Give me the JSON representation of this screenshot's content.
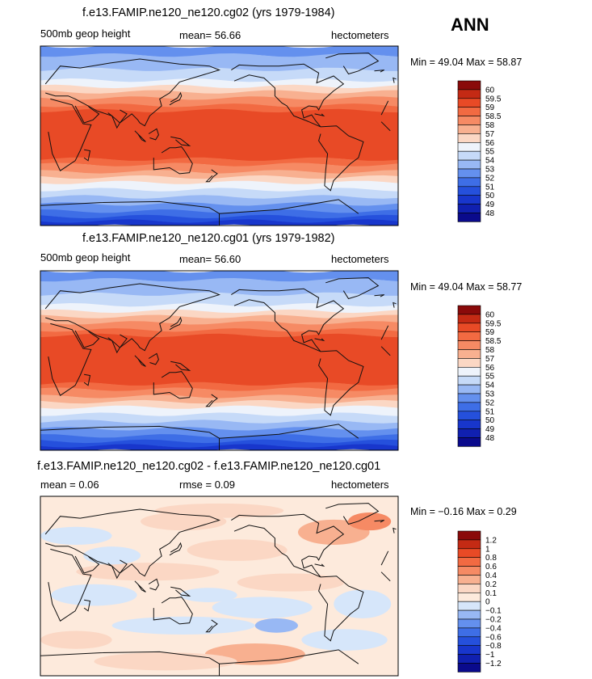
{
  "season": "ANN",
  "panels": [
    {
      "title": "f.e13.FAMIP.ne120_ne120.cg02 (yrs 1979-1984)",
      "variable": "500mb geop height",
      "stat_text": "mean=  56.66",
      "units": "hectometers",
      "minmax": "Min =  49.04 Max =  58.87",
      "legend_labels": [
        "60",
        "59.5",
        "59",
        "58.5",
        "58",
        "57",
        "56",
        "55",
        "54",
        "53",
        "52",
        "51",
        "50",
        "49",
        "48"
      ]
    },
    {
      "title": "f.e13.FAMIP.ne120_ne120.cg01 (yrs 1979-1982)",
      "variable": "500mb geop height",
      "stat_text": "mean=  56.60",
      "units": "hectometers",
      "minmax": "Min =  49.04 Max =  58.77",
      "legend_labels": [
        "60",
        "59.5",
        "59",
        "58.5",
        "58",
        "57",
        "56",
        "55",
        "54",
        "53",
        "52",
        "51",
        "50",
        "49",
        "48"
      ]
    },
    {
      "title": "f.e13.FAMIP.ne120_ne120.cg02 - f.e13.FAMIP.ne120_ne120.cg01",
      "variable": "mean =    0.06",
      "stat_text": "rmse =    0.09",
      "units": "hectometers",
      "minmax": "Min =  −0.16 Max =    0.29",
      "legend_labels": [
        "1.2",
        "1",
        "0.8",
        "0.6",
        "0.4",
        "0.2",
        "0.1",
        "0",
        "−0.1",
        "−0.2",
        "−0.4",
        "−0.6",
        "−0.8",
        "−1",
        "−1.2"
      ]
    }
  ],
  "chart_data": [
    {
      "type": "heatmap",
      "title": "f.e13.FAMIP.ne120_ne120.cg02 (yrs 1979-1984)",
      "xlabel": "",
      "ylabel": "",
      "x": [
        0,
        60,
        120,
        180,
        240,
        300,
        360
      ],
      "y": [
        -90,
        -60,
        -30,
        0,
        30,
        60,
        90
      ],
      "mean": 56.66,
      "min": 49.04,
      "max": 58.87,
      "contour_levels": [
        48,
        49,
        50,
        51,
        52,
        53,
        54,
        55,
        56,
        57,
        58,
        58.5,
        59,
        59.5,
        60
      ],
      "colors": [
        "#0a0a8c",
        "#1020b0",
        "#1836cc",
        "#2550dc",
        "#3e6ee6",
        "#6490ee",
        "#98b8f4",
        "#c6daf8",
        "#eef3fb",
        "#fbd7c4",
        "#f8b090",
        "#f68a64",
        "#f26a42",
        "#e84a26",
        "#c42a14",
        "#8a0a0a"
      ]
    },
    {
      "type": "heatmap",
      "title": "f.e13.FAMIP.ne120_ne120.cg01 (yrs 1979-1982)",
      "xlabel": "",
      "ylabel": "",
      "x": [
        0,
        60,
        120,
        180,
        240,
        300,
        360
      ],
      "y": [
        -90,
        -60,
        -30,
        0,
        30,
        60,
        90
      ],
      "mean": 56.6,
      "min": 49.04,
      "max": 58.77,
      "contour_levels": [
        48,
        49,
        50,
        51,
        52,
        53,
        54,
        55,
        56,
        57,
        58,
        58.5,
        59,
        59.5,
        60
      ],
      "colors": [
        "#0a0a8c",
        "#1020b0",
        "#1836cc",
        "#2550dc",
        "#3e6ee6",
        "#6490ee",
        "#98b8f4",
        "#c6daf8",
        "#eef3fb",
        "#fbd7c4",
        "#f8b090",
        "#f68a64",
        "#f26a42",
        "#e84a26",
        "#c42a14",
        "#8a0a0a"
      ]
    },
    {
      "type": "heatmap",
      "title": "f.e13.FAMIP.ne120_ne120.cg02 - f.e13.FAMIP.ne120_ne120.cg01",
      "xlabel": "",
      "ylabel": "",
      "x": [
        0,
        60,
        120,
        180,
        240,
        300,
        360
      ],
      "y": [
        -90,
        -60,
        -30,
        0,
        30,
        60,
        90
      ],
      "mean": 0.06,
      "rmse": 0.09,
      "min": -0.16,
      "max": 0.29,
      "contour_levels": [
        -1.2,
        -1,
        -0.8,
        -0.6,
        -0.4,
        -0.2,
        -0.1,
        0,
        0.1,
        0.2,
        0.4,
        0.6,
        0.8,
        1,
        1.2
      ],
      "colors": [
        "#0a0a8c",
        "#1020b0",
        "#1836cc",
        "#2550dc",
        "#3e6ee6",
        "#6490ee",
        "#98b8f4",
        "#d6e6fa",
        "#fdeadc",
        "#fbd7c4",
        "#f8b090",
        "#f68a64",
        "#f26a42",
        "#e84a26",
        "#c42a14",
        "#8a0a0a"
      ]
    }
  ]
}
